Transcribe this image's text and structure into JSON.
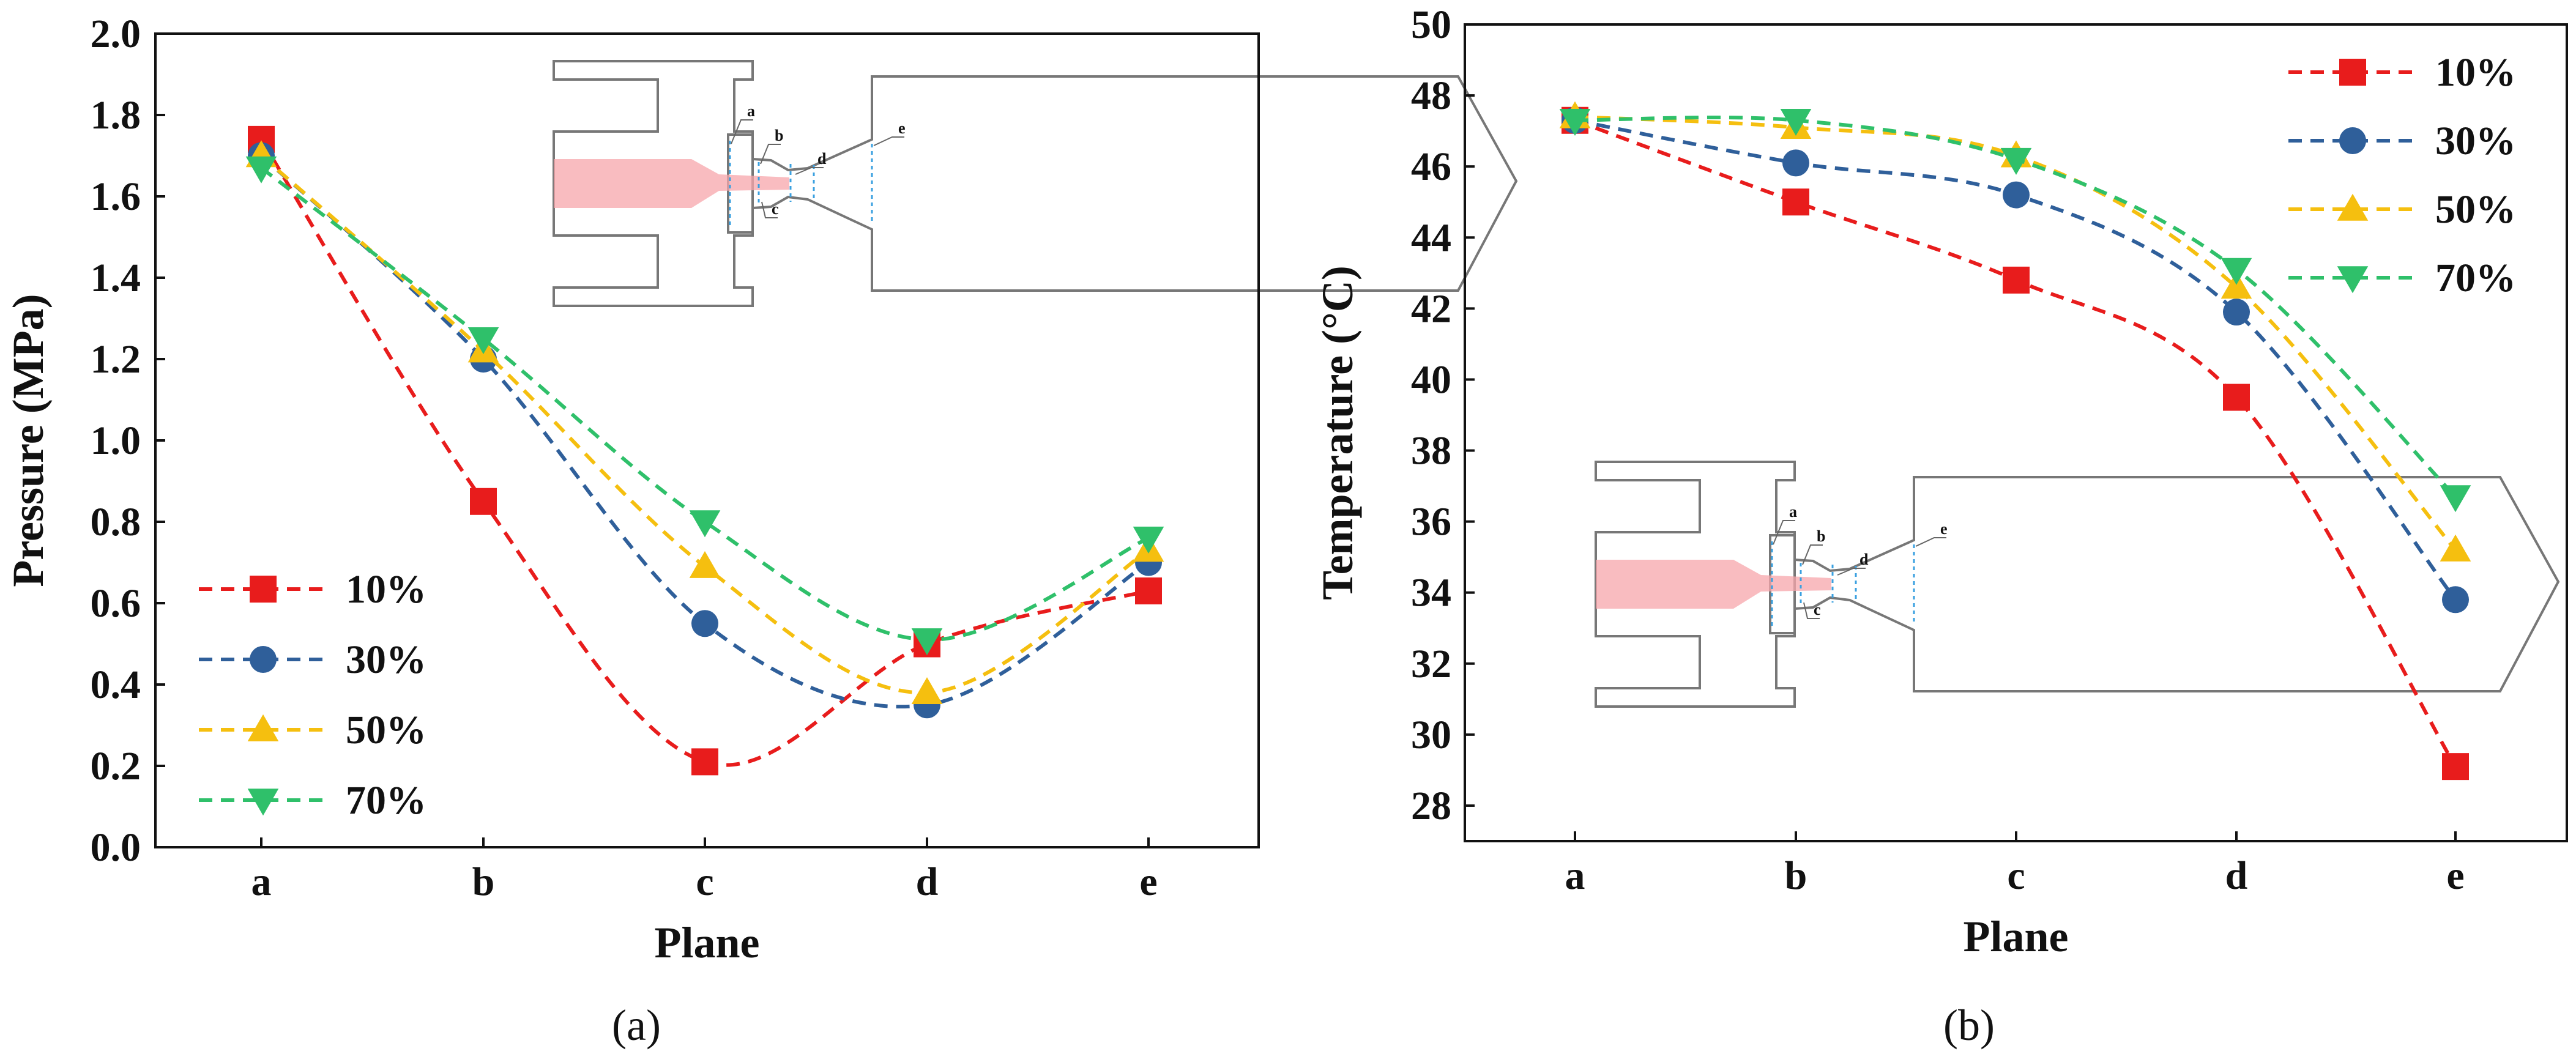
{
  "chart_data": [
    {
      "type": "line",
      "title": "",
      "panel_label": "(a)",
      "xlabel": "Plane",
      "ylabel": "Pressure (MPa)",
      "categories": [
        "a",
        "b",
        "c",
        "d",
        "e"
      ],
      "ylim": [
        0.0,
        2.0
      ],
      "yticks": [
        "0.0",
        "0.2",
        "0.4",
        "0.6",
        "0.8",
        "1.0",
        "1.2",
        "1.4",
        "1.6",
        "1.8",
        "2.0"
      ],
      "legend_position": "bottom-left",
      "series": [
        {
          "name": "10%",
          "marker": "square",
          "color": "#e81c1c",
          "values": [
            1.74,
            0.85,
            0.21,
            0.5,
            0.63
          ]
        },
        {
          "name": "30%",
          "marker": "circle",
          "color": "#2f5f9a",
          "values": [
            1.7,
            1.2,
            0.55,
            0.35,
            0.7
          ]
        },
        {
          "name": "50%",
          "marker": "triangle-up",
          "color": "#f5bf0f",
          "values": [
            1.7,
            1.22,
            0.69,
            0.38,
            0.73
          ]
        },
        {
          "name": "70%",
          "marker": "triangle-down",
          "color": "#2fc06a",
          "values": [
            1.67,
            1.25,
            0.8,
            0.51,
            0.76
          ]
        }
      ],
      "inset": {
        "plane_labels": [
          "a",
          "b",
          "d",
          "c",
          "e"
        ]
      }
    },
    {
      "type": "line",
      "title": "",
      "panel_label": "(b)",
      "xlabel": "Plane",
      "ylabel": "Temperature (°C)",
      "categories": [
        "a",
        "b",
        "c",
        "d",
        "e"
      ],
      "ylim": [
        27.0,
        50.0
      ],
      "yticks": [
        "28",
        "30",
        "32",
        "34",
        "36",
        "38",
        "40",
        "42",
        "44",
        "46",
        "48",
        "50"
      ],
      "legend_position": "top-right",
      "series": [
        {
          "name": "10%",
          "marker": "square",
          "color": "#e81c1c",
          "values": [
            47.3,
            45.0,
            42.8,
            39.5,
            29.1
          ]
        },
        {
          "name": "30%",
          "marker": "circle",
          "color": "#2f5f9a",
          "values": [
            47.3,
            46.1,
            45.2,
            41.9,
            33.8
          ]
        },
        {
          "name": "50%",
          "marker": "triangle-up",
          "color": "#f5bf0f",
          "values": [
            47.4,
            47.1,
            46.3,
            42.6,
            35.2
          ]
        },
        {
          "name": "70%",
          "marker": "triangle-down",
          "color": "#2fc06a",
          "values": [
            47.3,
            47.3,
            46.2,
            43.1,
            36.7
          ]
        }
      ],
      "inset": {
        "plane_labels": [
          "a",
          "b",
          "d",
          "c",
          "e"
        ]
      }
    }
  ]
}
